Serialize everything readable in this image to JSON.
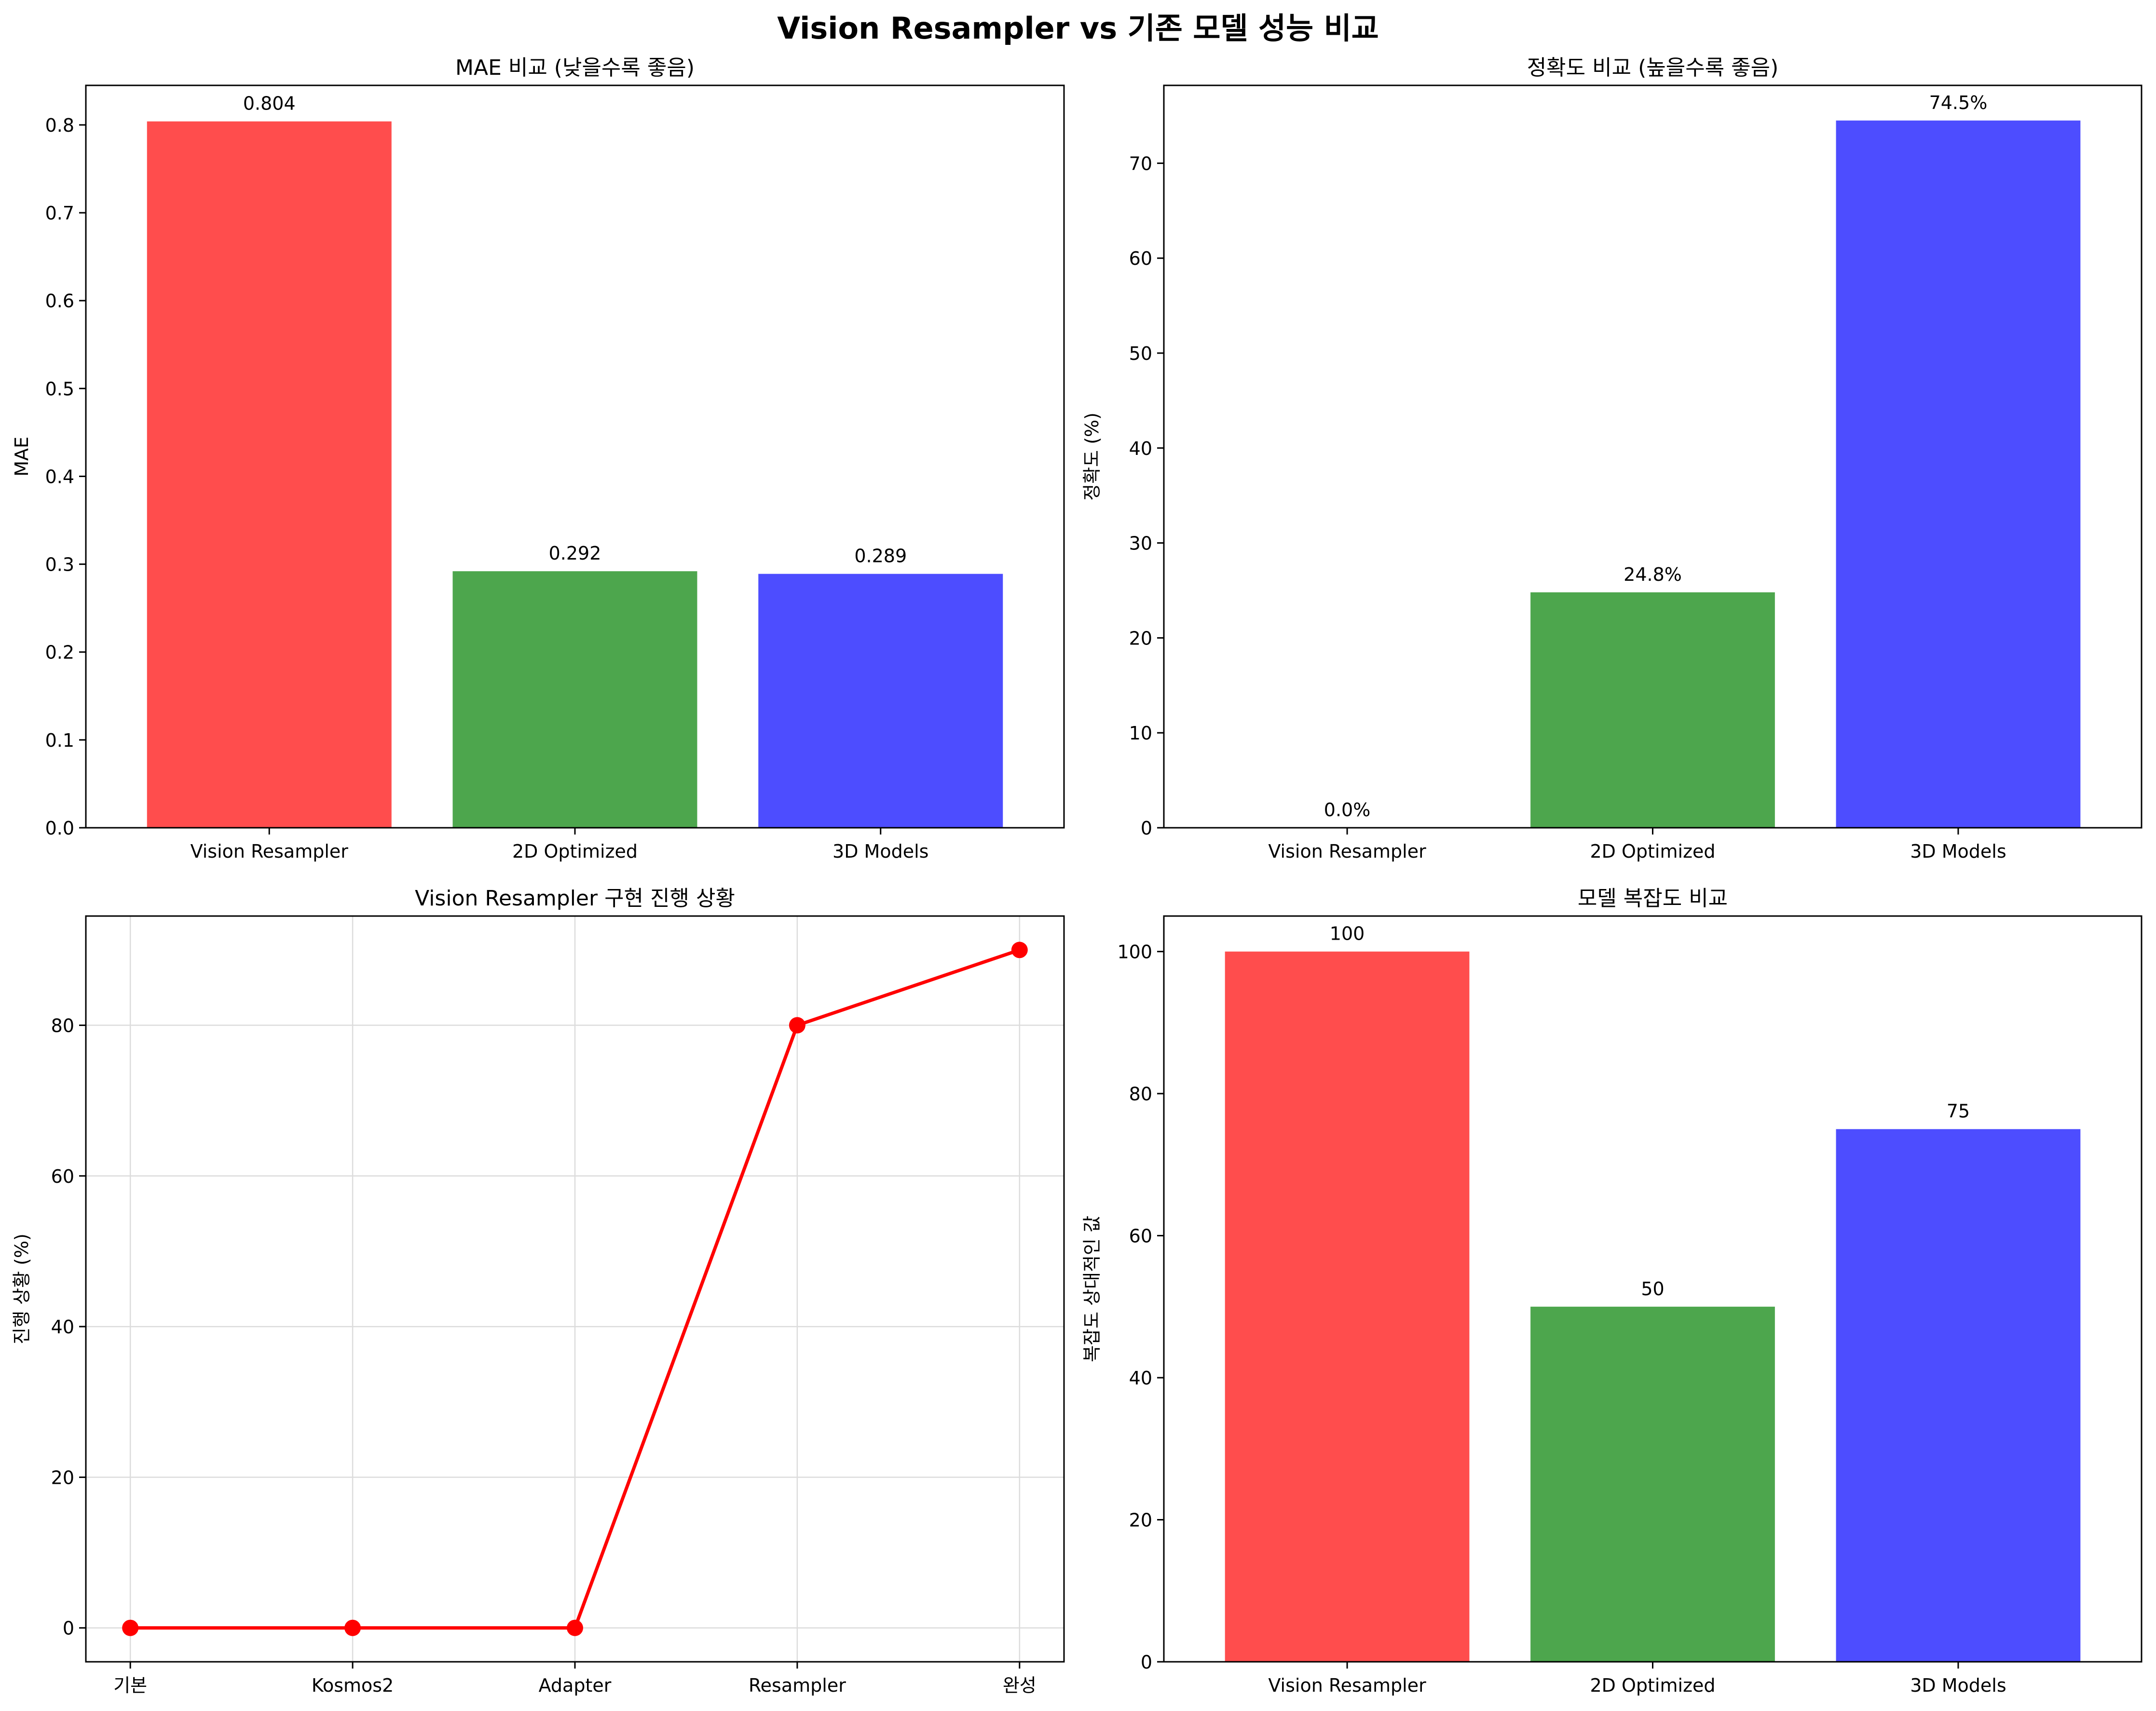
{
  "figure": {
    "suptitle": "Vision Resampler vs 기존 모델 성능 비교"
  },
  "chart_data": [
    {
      "type": "bar",
      "title": "MAE 비교 (낮을수록 좋음)",
      "xlabel": "",
      "ylabel": "MAE",
      "categories": [
        "Vision Resampler",
        "2D Optimized",
        "3D Models"
      ],
      "values": [
        0.804,
        0.292,
        0.289
      ],
      "value_labels": [
        "0.804",
        "0.292",
        "0.289"
      ],
      "colors": [
        "#ff4d4d",
        "#4da64d",
        "#4d4dff"
      ],
      "ylim": [
        0,
        0.845
      ],
      "yticks": [
        0,
        0.1,
        0.2,
        0.3,
        0.4,
        0.5,
        0.6,
        0.7,
        0.8
      ],
      "ytick_labels": [
        "0.0",
        "0.1",
        "0.2",
        "0.3",
        "0.4",
        "0.5",
        "0.6",
        "0.7",
        "0.8"
      ],
      "grid": false
    },
    {
      "type": "bar",
      "title": "정확도 비교 (높을수록 좋음)",
      "xlabel": "",
      "ylabel": "정확도 (%)",
      "categories": [
        "Vision Resampler",
        "2D Optimized",
        "3D Models"
      ],
      "values": [
        0.0,
        24.8,
        74.5
      ],
      "value_labels": [
        "0.0%",
        "24.8%",
        "74.5%"
      ],
      "colors": [
        "#ff4d4d",
        "#4da64d",
        "#4d4dff"
      ],
      "ylim": [
        0,
        78.2
      ],
      "yticks": [
        0,
        10,
        20,
        30,
        40,
        50,
        60,
        70
      ],
      "ytick_labels": [
        "0",
        "10",
        "20",
        "30",
        "40",
        "50",
        "60",
        "70"
      ],
      "grid": false
    },
    {
      "type": "line",
      "title": "Vision Resampler 구현 진행 상황",
      "xlabel": "",
      "ylabel": "진행 상황 (%)",
      "x": [
        "기본",
        "Kosmos2",
        "Adapter",
        "Resampler",
        "완성"
      ],
      "values": [
        0,
        0,
        0,
        80,
        90
      ],
      "color": "#ff0000",
      "ylim": [
        -4.5,
        94.5
      ],
      "yticks": [
        0,
        20,
        40,
        60,
        80
      ],
      "ytick_labels": [
        "0",
        "20",
        "40",
        "60",
        "80"
      ],
      "grid": true
    },
    {
      "type": "bar",
      "title": "모델 복잡도 비교",
      "xlabel": "",
      "ylabel": "복잡도 상대적인 값",
      "categories": [
        "Vision Resampler",
        "2D Optimized",
        "3D Models"
      ],
      "values": [
        100,
        50,
        75
      ],
      "value_labels": [
        "100",
        "50",
        "75"
      ],
      "colors": [
        "#ff4d4d",
        "#4da64d",
        "#4d4dff"
      ],
      "ylim": [
        0,
        105
      ],
      "yticks": [
        0,
        20,
        40,
        60,
        80,
        100
      ],
      "ytick_labels": [
        "0",
        "20",
        "40",
        "60",
        "80",
        "100"
      ],
      "grid": false
    }
  ]
}
